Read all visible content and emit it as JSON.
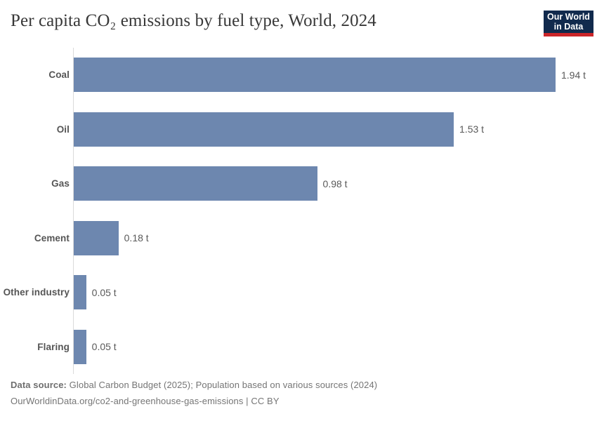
{
  "header": {
    "title": "Per capita CO₂ emissions by fuel type, World, 2024",
    "logo": {
      "line1": "Our World",
      "line2": "in Data"
    }
  },
  "chart_data": {
    "type": "bar",
    "orientation": "horizontal",
    "title": "Per capita CO₂ emissions by fuel type, World, 2024",
    "categories": [
      "Coal",
      "Oil",
      "Gas",
      "Cement",
      "Other industry",
      "Flaring"
    ],
    "values": [
      1.94,
      1.53,
      0.98,
      0.18,
      0.05,
      0.05
    ],
    "value_labels": [
      "1.94 t",
      "1.53 t",
      "0.98 t",
      "0.18 t",
      "0.05 t",
      "0.05 t"
    ],
    "unit": "t",
    "xlabel": "",
    "ylabel": "",
    "xlim": [
      0,
      1.94
    ],
    "grid": false,
    "legend": "none",
    "bar_color": "#6d87af"
  },
  "footer": {
    "source_label": "Data source:",
    "source_text": " Global Carbon Budget (2025); Population based on various sources (2024)",
    "license_line": "OurWorldinData.org/co2-and-greenhouse-gas-emissions | CC BY"
  },
  "colors": {
    "bar": "#6d87af",
    "title": "#383838",
    "axis_line": "#dadada",
    "logo_background": "#112a4d",
    "logo_accent": "#cb2529"
  }
}
